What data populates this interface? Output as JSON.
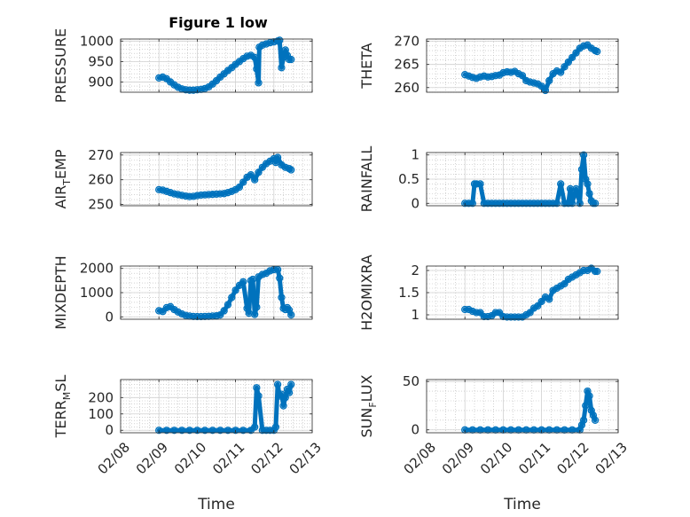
{
  "figure": {
    "title": "Figure 1 low",
    "xlabel": "Time",
    "x_tick_labels": [
      "02/08",
      "02/09",
      "02/10",
      "02/11",
      "02/12",
      "02/13"
    ],
    "marker_color": "#0072BD",
    "grid": true
  },
  "chart_data": [
    {
      "type": "scatter",
      "ylabel_main": "PRESSURE",
      "ylabel_sub": "",
      "ylim": [
        875,
        1005
      ],
      "yticks": [
        900,
        950,
        1000
      ],
      "x": [
        9.0,
        9.1,
        9.2,
        9.3,
        9.4,
        9.5,
        9.6,
        9.7,
        9.8,
        9.9,
        10.0,
        10.1,
        10.2,
        10.3,
        10.4,
        10.5,
        10.6,
        10.7,
        10.8,
        10.9,
        11.0,
        11.1,
        11.2,
        11.3,
        11.4,
        11.5,
        11.55,
        11.6,
        11.62,
        11.7,
        11.8,
        11.9,
        12.0,
        12.1,
        12.15,
        12.2,
        12.25,
        12.3,
        12.35,
        12.4,
        12.45
      ],
      "y": [
        910,
        912,
        908,
        900,
        893,
        887,
        883,
        881,
        880,
        880,
        881,
        882,
        884,
        888,
        895,
        903,
        912,
        920,
        928,
        935,
        943,
        950,
        957,
        963,
        965,
        960,
        932,
        898,
        985,
        990,
        993,
        996,
        998,
        1000,
        1002,
        935,
        960,
        978,
        965,
        955,
        955
      ]
    },
    {
      "type": "scatter",
      "ylabel_main": "THETA",
      "ylabel_sub": "",
      "ylim": [
        259,
        270.5
      ],
      "yticks": [
        260,
        265,
        270
      ],
      "x": [
        9.0,
        9.1,
        9.2,
        9.3,
        9.4,
        9.5,
        9.6,
        9.7,
        9.8,
        9.9,
        10.0,
        10.1,
        10.2,
        10.3,
        10.4,
        10.5,
        10.6,
        10.7,
        10.8,
        10.9,
        11.0,
        11.1,
        11.2,
        11.3,
        11.4,
        11.5,
        11.6,
        11.7,
        11.8,
        11.9,
        12.0,
        12.1,
        12.2,
        12.3,
        12.4,
        12.45
      ],
      "y": [
        262.8,
        262.5,
        262.2,
        262.0,
        262.3,
        262.5,
        262.3,
        262.4,
        262.6,
        262.7,
        263.2,
        263.4,
        263.3,
        263.5,
        263.0,
        262.6,
        261.5,
        261.2,
        261.0,
        260.8,
        260.3,
        259.4,
        261.5,
        263.0,
        263.6,
        263.3,
        264.5,
        265.5,
        266.5,
        267.5,
        268.5,
        269.0,
        269.2,
        268.5,
        268.0,
        267.8
      ]
    },
    {
      "type": "scatter",
      "ylabel_main": "AIR",
      "ylabel_sub": "T",
      "ylabel_rest": "EMP",
      "ylim": [
        249.5,
        271
      ],
      "yticks": [
        250,
        260,
        270
      ],
      "x": [
        9.0,
        9.1,
        9.2,
        9.3,
        9.4,
        9.5,
        9.6,
        9.7,
        9.8,
        9.9,
        10.0,
        10.1,
        10.2,
        10.3,
        10.4,
        10.5,
        10.6,
        10.7,
        10.8,
        10.9,
        11.0,
        11.1,
        11.2,
        11.3,
        11.4,
        11.5,
        11.6,
        11.7,
        11.8,
        11.9,
        12.0,
        12.05,
        12.1,
        12.2,
        12.3,
        12.4,
        12.45
      ],
      "y": [
        256,
        255.8,
        255.3,
        254.8,
        254.3,
        254.0,
        253.7,
        253.4,
        253.2,
        253.3,
        253.6,
        253.8,
        253.9,
        254.0,
        254.1,
        254.2,
        254.3,
        254.4,
        254.8,
        255.3,
        256.0,
        257.0,
        259.0,
        261.0,
        262.0,
        260.0,
        263.0,
        265.0,
        266.5,
        267.5,
        268.5,
        267.0,
        269.0,
        266.0,
        265.0,
        264.5,
        264.0
      ]
    },
    {
      "type": "scatter",
      "ylabel_main": "RAINFALL",
      "ylabel_sub": "",
      "ylim": [
        -0.05,
        1.05
      ],
      "yticks": [
        0,
        0.5,
        1
      ],
      "yticklabels": [
        "0",
        "0.5",
        "1"
      ],
      "x": [
        9.0,
        9.1,
        9.2,
        9.25,
        9.3,
        9.4,
        9.5,
        9.6,
        9.7,
        9.8,
        9.9,
        10.0,
        10.1,
        10.2,
        10.3,
        10.4,
        10.5,
        10.6,
        10.7,
        10.8,
        10.9,
        11.0,
        11.1,
        11.2,
        11.3,
        11.4,
        11.5,
        11.6,
        11.7,
        11.75,
        11.8,
        11.9,
        12.0,
        12.05,
        12.1,
        12.15,
        12.2,
        12.25,
        12.3,
        12.35,
        12.4
      ],
      "y": [
        0,
        0,
        0,
        0.4,
        0.4,
        0.4,
        0,
        0,
        0,
        0,
        0,
        0,
        0,
        0,
        0,
        0,
        0,
        0,
        0,
        0,
        0,
        0,
        0,
        0,
        0,
        0,
        0.4,
        0,
        0,
        0.3,
        0,
        0.3,
        0,
        0.7,
        1.0,
        0.5,
        0.4,
        0.2,
        0.05,
        0,
        0
      ]
    },
    {
      "type": "scatter",
      "ylabel_main": "MIXDEPTH",
      "ylabel_sub": "",
      "ylim": [
        -100,
        2100
      ],
      "yticks": [
        0,
        1000,
        2000
      ],
      "x": [
        9.0,
        9.1,
        9.2,
        9.3,
        9.4,
        9.5,
        9.6,
        9.7,
        9.8,
        9.9,
        10.0,
        10.1,
        10.2,
        10.3,
        10.4,
        10.5,
        10.6,
        10.7,
        10.8,
        10.9,
        11.0,
        11.1,
        11.2,
        11.3,
        11.35,
        11.4,
        11.45,
        11.5,
        11.55,
        11.6,
        11.7,
        11.8,
        11.9,
        12.0,
        12.1,
        12.15,
        12.2,
        12.25,
        12.3,
        12.35,
        12.4,
        12.45
      ],
      "y": [
        250,
        220,
        380,
        420,
        300,
        200,
        120,
        60,
        30,
        15,
        10,
        10,
        15,
        20,
        30,
        40,
        80,
        250,
        500,
        800,
        1100,
        1300,
        1450,
        350,
        150,
        1500,
        1550,
        100,
        400,
        1650,
        1750,
        1800,
        1900,
        1950,
        1950,
        1600,
        800,
        350,
        300,
        380,
        280,
        80
      ]
    },
    {
      "type": "scatter",
      "ylabel_main": "H2OMIXRA",
      "ylabel_sub": "",
      "ylim": [
        0.9,
        2.1
      ],
      "yticks": [
        1,
        1.5,
        2
      ],
      "yticklabels": [
        "1",
        "1.5",
        "2"
      ],
      "x": [
        9.0,
        9.1,
        9.2,
        9.3,
        9.4,
        9.5,
        9.6,
        9.7,
        9.8,
        9.9,
        10.0,
        10.1,
        10.2,
        10.3,
        10.4,
        10.5,
        10.6,
        10.7,
        10.8,
        10.9,
        11.0,
        11.1,
        11.2,
        11.3,
        11.4,
        11.5,
        11.6,
        11.7,
        11.8,
        11.9,
        12.0,
        12.1,
        12.2,
        12.3,
        12.4,
        12.45
      ],
      "y": [
        1.12,
        1.12,
        1.08,
        1.05,
        1.05,
        0.96,
        0.96,
        0.98,
        1.05,
        1.05,
        0.96,
        0.95,
        0.95,
        0.95,
        0.95,
        0.95,
        1.0,
        1.05,
        1.15,
        1.2,
        1.3,
        1.4,
        1.35,
        1.55,
        1.6,
        1.65,
        1.7,
        1.8,
        1.85,
        1.9,
        1.95,
        2.0,
        2.0,
        2.05,
        1.98,
        1.98
      ]
    },
    {
      "type": "scatter",
      "ylabel_main": "TERR",
      "ylabel_sub": "M",
      "ylabel_rest": "SL",
      "ylim": [
        -15,
        310
      ],
      "yticks": [
        0,
        100,
        200
      ],
      "x": [
        9.0,
        9.2,
        9.4,
        9.6,
        9.8,
        10.0,
        10.2,
        10.4,
        10.6,
        10.8,
        11.0,
        11.2,
        11.4,
        11.5,
        11.55,
        11.6,
        11.7,
        11.8,
        11.9,
        12.0,
        12.05,
        12.1,
        12.15,
        12.2,
        12.25,
        12.3,
        12.35,
        12.4,
        12.45
      ],
      "y": [
        0,
        0,
        0,
        0,
        0,
        0,
        0,
        0,
        0,
        0,
        0,
        0,
        0,
        20,
        260,
        210,
        0,
        0,
        0,
        0,
        20,
        280,
        210,
        220,
        150,
        200,
        250,
        230,
        280
      ]
    },
    {
      "type": "scatter",
      "ylabel_main": "SUN",
      "ylabel_sub": "F",
      "ylabel_rest": "LUX",
      "ylim": [
        -3,
        52
      ],
      "yticks": [
        0,
        50
      ],
      "x": [
        9.0,
        9.2,
        9.4,
        9.6,
        9.8,
        10.0,
        10.2,
        10.4,
        10.6,
        10.8,
        11.0,
        11.2,
        11.4,
        11.6,
        11.8,
        12.0,
        12.05,
        12.1,
        12.15,
        12.2,
        12.25,
        12.3,
        12.35,
        12.4
      ],
      "y": [
        0,
        0,
        0,
        0,
        0,
        0,
        0,
        0,
        0,
        0,
        0,
        0,
        0,
        0,
        0,
        0,
        5,
        10,
        25,
        40,
        35,
        20,
        15,
        10
      ]
    }
  ]
}
